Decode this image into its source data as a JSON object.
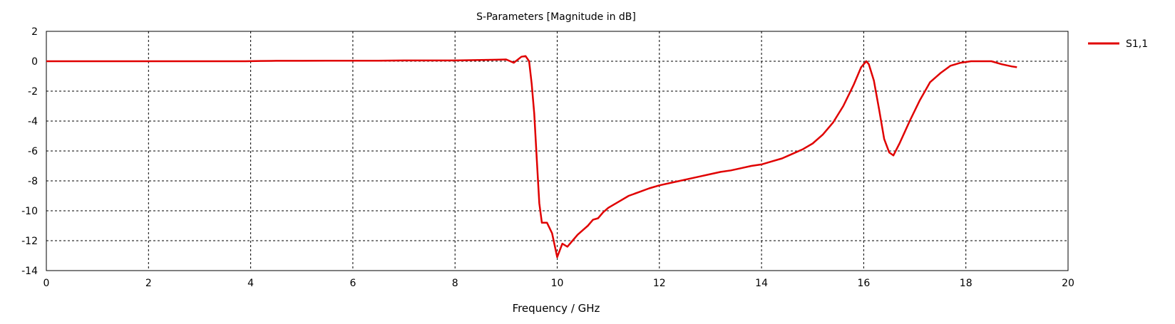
{
  "chart_data": {
    "type": "line",
    "title": "S-Parameters [Magnitude in dB]",
    "xlabel": "Frequency / GHz",
    "ylabel": "",
    "xlim": [
      0,
      20
    ],
    "ylim": [
      -14,
      2
    ],
    "xticks": [
      0,
      2,
      4,
      6,
      8,
      10,
      12,
      14,
      16,
      18,
      20
    ],
    "yticks": [
      2,
      0,
      -2,
      -4,
      -6,
      -8,
      -10,
      -12,
      -14
    ],
    "grid": true,
    "legend_position": "right",
    "colors": {
      "series": "#e00000",
      "grid": "#000000",
      "axis": "#000000"
    },
    "series": [
      {
        "name": "S1,1",
        "x": [
          0,
          1,
          2,
          3,
          3.9,
          4.2,
          4.5,
          5,
          5.5,
          6,
          6.5,
          7,
          7.5,
          8,
          8.5,
          8.8,
          9.0,
          9.15,
          9.3,
          9.38,
          9.45,
          9.5,
          9.55,
          9.6,
          9.65,
          9.7,
          9.75,
          9.8,
          9.9,
          10.0,
          10.1,
          10.2,
          10.3,
          10.4,
          10.5,
          10.6,
          10.7,
          10.8,
          10.9,
          11.0,
          11.2,
          11.4,
          11.6,
          11.8,
          12.0,
          12.2,
          12.4,
          12.6,
          12.8,
          13.0,
          13.2,
          13.4,
          13.6,
          13.8,
          14.0,
          14.2,
          14.4,
          14.6,
          14.8,
          15.0,
          15.2,
          15.4,
          15.6,
          15.8,
          15.95,
          16.05,
          16.1,
          16.2,
          16.3,
          16.4,
          16.5,
          16.58,
          16.7,
          16.9,
          17.1,
          17.3,
          17.5,
          17.7,
          17.9,
          18.1,
          18.3,
          18.5,
          18.7,
          18.9,
          19.0
        ],
        "values": [
          0,
          0,
          0,
          0,
          0,
          0.02,
          0.03,
          0.03,
          0.04,
          0.04,
          0.04,
          0.05,
          0.05,
          0.05,
          0.08,
          0.1,
          0.12,
          -0.1,
          0.3,
          0.35,
          0,
          -1.5,
          -3.5,
          -6.5,
          -9.5,
          -10.8,
          -10.8,
          -10.8,
          -11.5,
          -13.1,
          -12.2,
          -12.4,
          -12.0,
          -11.6,
          -11.3,
          -11.0,
          -10.6,
          -10.5,
          -10.1,
          -9.8,
          -9.4,
          -9.0,
          -8.75,
          -8.5,
          -8.3,
          -8.15,
          -8.0,
          -7.85,
          -7.7,
          -7.55,
          -7.4,
          -7.3,
          -7.15,
          -7.0,
          -6.9,
          -6.7,
          -6.5,
          -6.2,
          -5.9,
          -5.5,
          -4.9,
          -4.1,
          -3.0,
          -1.6,
          -0.4,
          0,
          -0.2,
          -1.3,
          -3.2,
          -5.2,
          -6.1,
          -6.3,
          -5.5,
          -4.0,
          -2.6,
          -1.4,
          -0.8,
          -0.3,
          -0.1,
          0,
          0,
          0,
          -0.2,
          -0.35,
          -0.4
        ]
      }
    ]
  }
}
